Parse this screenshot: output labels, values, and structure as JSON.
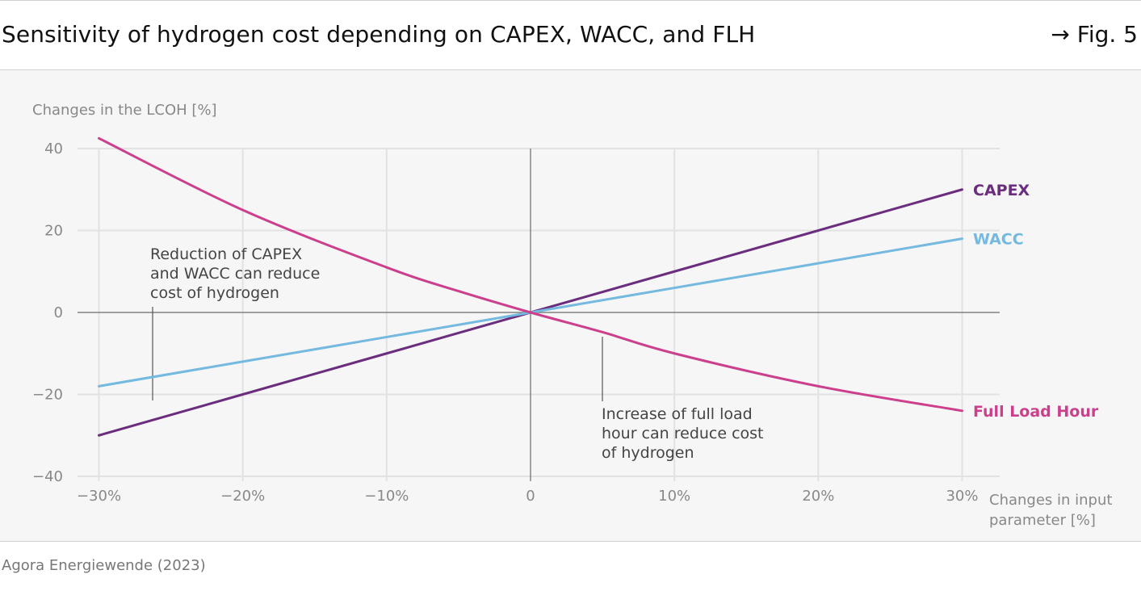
{
  "header": {
    "title": "Sensitivity of hydrogen cost depending on CAPEX, WACC, and FLH",
    "fig_label": "→ Fig. 5"
  },
  "footer": {
    "source": "Agora Energiewende (2023)"
  },
  "colors": {
    "capex": "#6b2d7e",
    "wacc": "#74b9e0",
    "flh": "#cc3f8c",
    "grid": "#e2e2e2",
    "axis": "#6a6a6a",
    "tick_text": "#888888",
    "annotation_text": "#444444",
    "panel_bg": "#f6f6f6"
  },
  "chart_data": {
    "type": "line",
    "ylabel": "Changes in the LCOH [%]",
    "xlabel_lines": [
      "Changes in input",
      "parameter [%]"
    ],
    "xlim": [
      -30,
      30
    ],
    "ylim": [
      -40,
      40
    ],
    "x_ticks": [
      {
        "value": -30,
        "label": "−30%"
      },
      {
        "value": -20,
        "label": "−20%"
      },
      {
        "value": -10,
        "label": "−10%"
      },
      {
        "value": 0,
        "label": "0"
      },
      {
        "value": 10,
        "label": "10%"
      },
      {
        "value": 20,
        "label": "20%"
      },
      {
        "value": 30,
        "label": "30%"
      }
    ],
    "y_ticks": [
      {
        "value": 40,
        "label": "40"
      },
      {
        "value": 20,
        "label": "20"
      },
      {
        "value": 0,
        "label": "0"
      },
      {
        "value": -20,
        "label": "−20"
      },
      {
        "value": -40,
        "label": "−40"
      }
    ],
    "grid": true,
    "series": [
      {
        "key": "capex",
        "name": "CAPEX",
        "x": [
          -30,
          -20,
          -10,
          0,
          10,
          20,
          30
        ],
        "y": [
          -30,
          -20,
          -10,
          0,
          10,
          20,
          30
        ]
      },
      {
        "key": "wacc",
        "name": "WACC",
        "x": [
          -30,
          -20,
          -10,
          0,
          10,
          20,
          30
        ],
        "y": [
          -18,
          -12,
          -6,
          0,
          6,
          12,
          18
        ]
      },
      {
        "key": "flh",
        "name": "Full Load Hour",
        "x": [
          -30,
          -20,
          -10,
          -5,
          0,
          5,
          10,
          20,
          30
        ],
        "y": [
          42.5,
          25,
          11,
          5.2,
          0,
          -4.8,
          -10,
          -18,
          -24
        ]
      }
    ],
    "annotations": [
      {
        "key": "reduce",
        "lines": [
          "Reduction of CAPEX",
          "and WACC can reduce",
          "cost of hydrogen"
        ],
        "anchor_x": -26.3
      },
      {
        "key": "increase",
        "lines": [
          "Increase of full load",
          "hour can reduce cost",
          "of hydrogen"
        ],
        "anchor_x": 5
      }
    ]
  }
}
